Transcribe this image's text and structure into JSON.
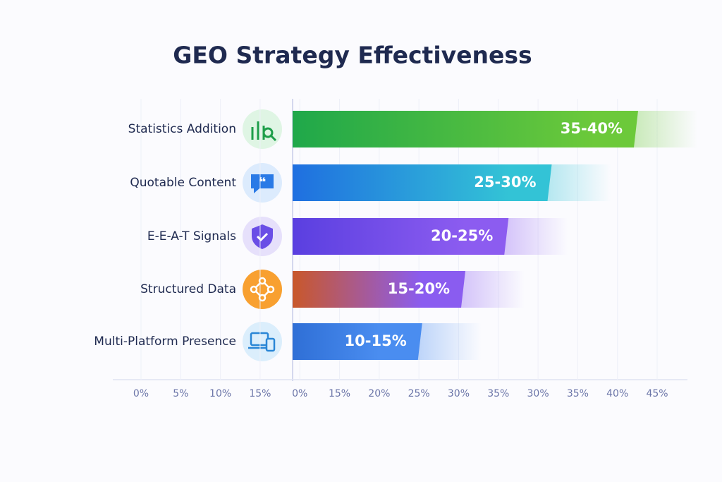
{
  "chart_data": {
    "type": "bar",
    "orientation": "horizontal",
    "title": "GEO Strategy Effectiveness",
    "categories": [
      "Statistics Addition",
      "Quotable Content",
      "E-E-A-T Signals",
      "Structured Data",
      "Multi-Platform Presence"
    ],
    "low": [
      35,
      25,
      20,
      15,
      10
    ],
    "high": [
      40,
      30,
      25,
      20,
      15
    ],
    "value_labels": [
      "35-40%",
      "25-30%",
      "20-25%",
      "15-20%",
      "10-15%"
    ],
    "colors": [
      [
        "#1fa84a",
        "#6cc93a"
      ],
      [
        "#1f6fe0",
        "#33c3d6"
      ],
      [
        "#5a3fe0",
        "#8c5cf0"
      ],
      [
        "#c9582a",
        "#8a5cf0"
      ],
      [
        "#2f6fd6",
        "#4a8df0"
      ]
    ],
    "axis_labels": [
      "0%",
      "5%",
      "10%",
      "15%",
      "0%",
      "15%",
      "20%",
      "25%",
      "30%",
      "35%",
      "30%",
      "35%",
      "40%",
      "45%"
    ]
  }
}
